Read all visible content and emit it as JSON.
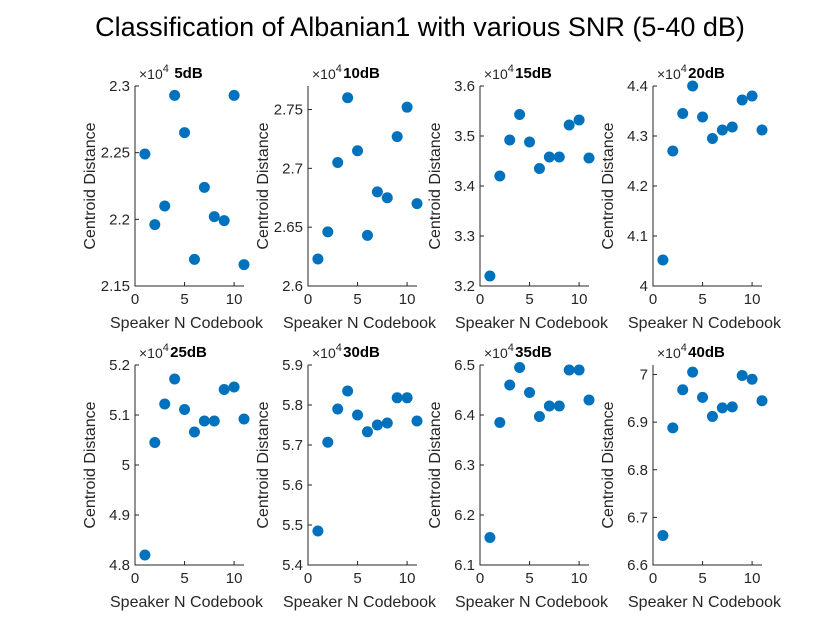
{
  "figure": {
    "title": "Classification of Albanian1 with various SNR (5-40 dB)"
  },
  "chart_data": [
    {
      "type": "scatter",
      "title": "5dB",
      "xlabel": "Speaker N Codebook",
      "ylabel": "Centroid Distance",
      "exponent": "4",
      "xlim": [
        0,
        11
      ],
      "ylim": [
        2.15,
        2.3
      ],
      "xticks": [
        "0",
        "5",
        "10"
      ],
      "yticks": [
        "2.15",
        "2.2",
        "2.25",
        "2.3"
      ],
      "x": [
        1,
        2,
        3,
        4,
        5,
        6,
        7,
        8,
        9,
        10,
        11
      ],
      "y": [
        2.249,
        2.196,
        2.21,
        2.293,
        2.265,
        2.17,
        2.224,
        2.202,
        2.199,
        2.293,
        2.166
      ],
      "color": "#0072BD"
    },
    {
      "type": "scatter",
      "title": "10dB",
      "xlabel": "Speaker N Codebook",
      "ylabel": "Centroid Distance",
      "exponent": "4",
      "xlim": [
        0,
        11
      ],
      "ylim": [
        2.6,
        2.77
      ],
      "xticks": [
        "0",
        "5",
        "10"
      ],
      "yticks": [
        "2.6",
        "2.65",
        "2.7",
        "2.75"
      ],
      "x": [
        1,
        2,
        3,
        4,
        5,
        6,
        7,
        8,
        9,
        10,
        11
      ],
      "y": [
        2.623,
        2.646,
        2.705,
        2.76,
        2.715,
        2.643,
        2.68,
        2.675,
        2.727,
        2.752,
        2.67
      ],
      "color": "#0072BD"
    },
    {
      "type": "scatter",
      "title": "15dB",
      "xlabel": "Speaker N Codebook",
      "ylabel": "Centroid Distance",
      "exponent": "4",
      "xlim": [
        0,
        11
      ],
      "ylim": [
        3.2,
        3.6
      ],
      "xticks": [
        "0",
        "5",
        "10"
      ],
      "yticks": [
        "3.2",
        "3.3",
        "3.4",
        "3.5",
        "3.6"
      ],
      "x": [
        1,
        2,
        3,
        4,
        5,
        6,
        7,
        8,
        9,
        10,
        11
      ],
      "y": [
        3.22,
        3.42,
        3.492,
        3.543,
        3.488,
        3.435,
        3.458,
        3.458,
        3.522,
        3.532,
        3.456
      ],
      "color": "#0072BD"
    },
    {
      "type": "scatter",
      "title": "20dB",
      "xlabel": "Speaker N Codebook",
      "ylabel": "Centroid Distance",
      "exponent": "4",
      "xlim": [
        0,
        11
      ],
      "ylim": [
        4,
        4.4
      ],
      "xticks": [
        "0",
        "5",
        "10"
      ],
      "yticks": [
        "4",
        "4.1",
        "4.2",
        "4.3",
        "4.4"
      ],
      "x": [
        1,
        2,
        3,
        4,
        5,
        6,
        7,
        8,
        9,
        10,
        11
      ],
      "y": [
        4.052,
        4.27,
        4.345,
        4.4,
        4.338,
        4.295,
        4.312,
        4.318,
        4.372,
        4.38,
        4.312
      ],
      "color": "#0072BD"
    },
    {
      "type": "scatter",
      "title": "25dB",
      "xlabel": "Speaker N Codebook",
      "ylabel": "Centroid Distance",
      "exponent": "4",
      "xlim": [
        0,
        11
      ],
      "ylim": [
        4.8,
        5.2
      ],
      "xticks": [
        "0",
        "5",
        "10"
      ],
      "yticks": [
        "4.8",
        "4.9",
        "5",
        "5.1",
        "5.2"
      ],
      "x": [
        1,
        2,
        3,
        4,
        5,
        6,
        7,
        8,
        9,
        10,
        11
      ],
      "y": [
        4.82,
        5.045,
        5.122,
        5.172,
        5.111,
        5.066,
        5.088,
        5.088,
        5.151,
        5.156,
        5.092
      ],
      "color": "#0072BD"
    },
    {
      "type": "scatter",
      "title": "30dB",
      "xlabel": "Speaker N Codebook",
      "ylabel": "Centroid Distance",
      "exponent": "4",
      "xlim": [
        0,
        11
      ],
      "ylim": [
        5.4,
        5.9
      ],
      "xticks": [
        "0",
        "5",
        "10"
      ],
      "yticks": [
        "5.4",
        "5.5",
        "5.6",
        "5.7",
        "5.8",
        "5.9"
      ],
      "x": [
        1,
        2,
        3,
        4,
        5,
        6,
        7,
        8,
        9,
        10,
        11
      ],
      "y": [
        5.485,
        5.707,
        5.79,
        5.835,
        5.775,
        5.733,
        5.75,
        5.755,
        5.818,
        5.818,
        5.76
      ],
      "color": "#0072BD"
    },
    {
      "type": "scatter",
      "title": "35dB",
      "xlabel": "Speaker N Codebook",
      "ylabel": "Centroid Distance",
      "exponent": "4",
      "xlim": [
        0,
        11
      ],
      "ylim": [
        6.1,
        6.5
      ],
      "xticks": [
        "0",
        "5",
        "10"
      ],
      "yticks": [
        "6.1",
        "6.2",
        "6.3",
        "6.4",
        "6.5"
      ],
      "x": [
        1,
        2,
        3,
        4,
        5,
        6,
        7,
        8,
        9,
        10,
        11
      ],
      "y": [
        6.155,
        6.385,
        6.46,
        6.495,
        6.445,
        6.397,
        6.418,
        6.418,
        6.49,
        6.49,
        6.43
      ],
      "color": "#0072BD"
    },
    {
      "type": "scatter",
      "title": "40dB",
      "xlabel": "Speaker N Codebook",
      "ylabel": "Centroid Distance",
      "exponent": "4",
      "xlim": [
        0,
        11
      ],
      "ylim": [
        6.6,
        7.02
      ],
      "xticks": [
        "0",
        "5",
        "10"
      ],
      "yticks": [
        "6.6",
        "6.7",
        "6.8",
        "6.9",
        "7"
      ],
      "x": [
        1,
        2,
        3,
        4,
        5,
        6,
        7,
        8,
        9,
        10,
        11
      ],
      "y": [
        6.662,
        6.888,
        6.968,
        7.005,
        6.952,
        6.912,
        6.93,
        6.932,
        6.998,
        6.99,
        6.945
      ],
      "color": "#0072BD"
    }
  ]
}
